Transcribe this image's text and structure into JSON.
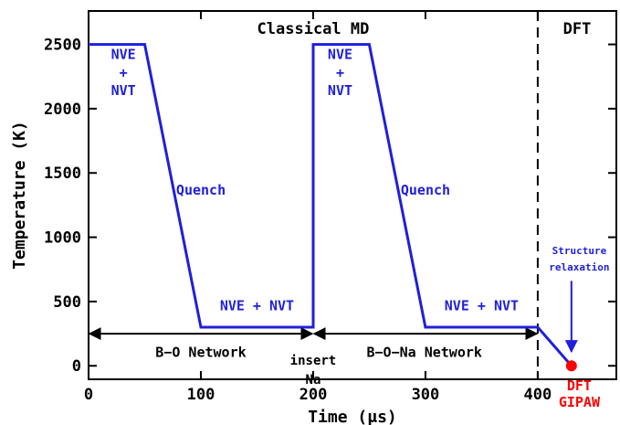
{
  "chart_data": {
    "type": "line",
    "xlabel": "Time (μs)",
    "ylabel": "Temperature (K)",
    "xlim": [
      0,
      470
    ],
    "ylim": [
      -105,
      2760
    ],
    "x_ticks": [
      0,
      100,
      200,
      300,
      400
    ],
    "x_tick_labels": [
      "0",
      "100",
      "200",
      "300",
      "400"
    ],
    "y_ticks": [
      0,
      500,
      1000,
      1500,
      2000,
      2500
    ],
    "y_tick_labels": [
      "0",
      "500",
      "1000",
      "1500",
      "2000",
      "2500"
    ],
    "grid": false,
    "series": [
      {
        "color": "#1f1fdc",
        "x": [
          0,
          50,
          100,
          200,
          200,
          250,
          300,
          400,
          430
        ],
        "y": [
          2500,
          2500,
          300,
          300,
          2500,
          2500,
          300,
          300,
          0
        ]
      }
    ],
    "marker": {
      "x": 430,
      "y": 0,
      "color": "#ff0000"
    },
    "divider": {
      "x": 400,
      "style": "dashed"
    },
    "spans": [
      {
        "x0": 0,
        "x1": 200,
        "y": 250,
        "label": "B−O Network"
      },
      {
        "x0": 200,
        "x1": 400,
        "y": 250,
        "label": "B−O−Na Network"
      }
    ],
    "region_labels": {
      "md": "Classical MD",
      "dft": "DFT"
    },
    "annotations": {
      "nve_nvt_1": [
        "NVE",
        "+",
        "NVT"
      ],
      "nve_nvt_2": [
        "NVE",
        "+",
        "NVT"
      ],
      "quench_1": "Quench",
      "quench_2": "Quench",
      "plateau_1": "NVE + NVT",
      "plateau_2": "NVE + NVT",
      "insert": [
        "insert",
        "Na"
      ],
      "structure": [
        "Structure",
        "relaxation"
      ],
      "dft_gipaw": [
        "DFT",
        "GIPAW"
      ]
    },
    "colors": {
      "line": "#1f1fdc",
      "marker": "#ff0000",
      "axis": "#000000",
      "text_blue": "#1f1fdc",
      "text_red": "#ff0000"
    }
  }
}
